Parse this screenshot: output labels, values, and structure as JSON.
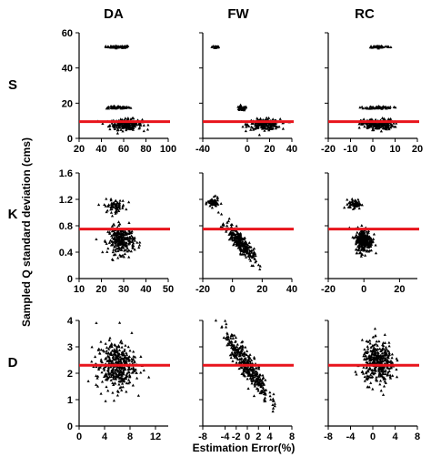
{
  "colors": {
    "reference_line": "#e8141c",
    "points": "#000000",
    "axes": "#000000"
  },
  "column_titles": [
    "DA",
    "FW",
    "RC"
  ],
  "row_titles": [
    "S",
    "K",
    "D"
  ],
  "ylabel": "Sampled Q standard deviation (cms)",
  "xlabel": "Estimation Error(%)",
  "chart_data": [
    {
      "type": "scatter",
      "row": "S",
      "column": "DA",
      "xlim": [
        20,
        100
      ],
      "ylim": [
        0,
        60
      ],
      "xticks": [
        "20",
        "40",
        "60",
        "80",
        "100"
      ],
      "yticks": [
        "0",
        "20",
        "40",
        "60"
      ],
      "hline": 9.5,
      "clusters": [
        {
          "x_center": 55,
          "x_spread": 9,
          "y_center": 52,
          "y_spread": 0.5,
          "n": 60
        },
        {
          "x_center": 55,
          "x_spread": 9,
          "y_center": 17.5,
          "y_spread": 0.6,
          "n": 60
        },
        {
          "x_center": 62,
          "x_spread": 12,
          "y_center": 8,
          "y_spread": 2.5,
          "n": 220
        }
      ]
    },
    {
      "type": "scatter",
      "row": "S",
      "column": "FW",
      "xlim": [
        -40,
        40
      ],
      "ylim": [
        0,
        60
      ],
      "xticks": [
        "-40",
        "0",
        "20",
        "40"
      ],
      "yticks": [],
      "hline": 9.5,
      "clusters": [
        {
          "x_center": -28,
          "x_spread": 3,
          "y_center": 52,
          "y_spread": 0.8,
          "n": 25
        },
        {
          "x_center": -5,
          "x_spread": 4,
          "y_center": 17,
          "y_spread": 1,
          "n": 40
        },
        {
          "x_center": 15,
          "x_spread": 12,
          "y_center": 8,
          "y_spread": 2.5,
          "n": 200
        }
      ]
    },
    {
      "type": "scatter",
      "row": "S",
      "column": "RC",
      "xlim": [
        -20,
        20
      ],
      "ylim": [
        0,
        60
      ],
      "xticks": [
        "-20",
        "-10",
        "0",
        "10",
        "20"
      ],
      "yticks": [],
      "hline": 9.5,
      "clusters": [
        {
          "x_center": 3,
          "x_spread": 4,
          "y_center": 52,
          "y_spread": 0.5,
          "n": 60
        },
        {
          "x_center": 3,
          "x_spread": 5,
          "y_center": 17.5,
          "y_spread": 0.6,
          "n": 60
        },
        {
          "x_center": 2,
          "x_spread": 6,
          "y_center": 8,
          "y_spread": 2.5,
          "n": 220
        }
      ]
    },
    {
      "type": "scatter",
      "row": "K",
      "column": "DA",
      "xlim": [
        10,
        50
      ],
      "ylim": [
        0,
        1.6
      ],
      "xticks": [
        "10",
        "20",
        "30",
        "40",
        "50"
      ],
      "yticks": [
        "0",
        "0.4",
        "0.8",
        "1.2",
        "1.6"
      ],
      "hline": 0.75,
      "clusters": [
        {
          "x_center": 26,
          "x_spread": 4,
          "y_center": 1.1,
          "y_spread": 0.08,
          "n": 70
        },
        {
          "x_center": 29,
          "x_spread": 5,
          "y_center": 0.58,
          "y_spread": 0.17,
          "n": 260
        }
      ]
    },
    {
      "type": "scatter",
      "row": "K",
      "column": "FW",
      "xlim": [
        -20,
        40
      ],
      "ylim": [
        0,
        1.6
      ],
      "xticks": [
        "-20",
        "0",
        "20",
        "40"
      ],
      "yticks": [],
      "hline": 0.75,
      "clusters": [
        {
          "x_center": -13,
          "x_spread": 3,
          "y_center": 1.15,
          "y_spread": 0.06,
          "n": 60
        },
        {
          "x_center": 5,
          "x_spread": 8,
          "y_center": 0.55,
          "y_spread": 0.12,
          "n": 260,
          "slope": -0.025
        }
      ]
    },
    {
      "type": "scatter",
      "row": "K",
      "column": "RC",
      "xlim": [
        -20,
        30
      ],
      "ylim": [
        0,
        1.6
      ],
      "xticks": [
        "-20",
        "0",
        "20"
      ],
      "yticks": [],
      "hline": 0.75,
      "clusters": [
        {
          "x_center": -5,
          "x_spread": 3,
          "y_center": 1.13,
          "y_spread": 0.06,
          "n": 60
        },
        {
          "x_center": 0,
          "x_spread": 4,
          "y_center": 0.58,
          "y_spread": 0.15,
          "n": 260
        }
      ]
    },
    {
      "type": "scatter",
      "row": "D",
      "column": "DA",
      "xlim": [
        0,
        14
      ],
      "ylim": [
        0,
        4
      ],
      "xticks": [
        "0",
        "4",
        "8",
        "12"
      ],
      "yticks": [
        "0",
        "1",
        "2",
        "3",
        "4"
      ],
      "hline": 2.3,
      "clusters": [
        {
          "x_center": 5.8,
          "x_spread": 2.6,
          "y_center": 2.3,
          "y_spread": 0.75,
          "n": 380
        }
      ]
    },
    {
      "type": "scatter",
      "row": "D",
      "column": "FW",
      "xlim": [
        -8,
        8
      ],
      "ylim": [
        0,
        4
      ],
      "xticks": [
        "-8",
        "-4",
        "-2",
        "0",
        "2",
        "4",
        "8"
      ],
      "yticks": [],
      "hline": 2.3,
      "clusters": [
        {
          "x_center": 0,
          "x_spread": 3.2,
          "y_center": 2.3,
          "y_spread": 0.45,
          "n": 360,
          "slope": -0.28
        }
      ]
    },
    {
      "type": "scatter",
      "row": "D",
      "column": "RC",
      "xlim": [
        -8,
        8
      ],
      "ylim": [
        0,
        4
      ],
      "xticks": [
        "-8",
        "-4",
        "0",
        "4",
        "8"
      ],
      "yticks": [],
      "hline": 2.3,
      "clusters": [
        {
          "x_center": 1,
          "x_spread": 2.4,
          "y_center": 2.4,
          "y_spread": 0.65,
          "n": 360
        }
      ]
    }
  ]
}
